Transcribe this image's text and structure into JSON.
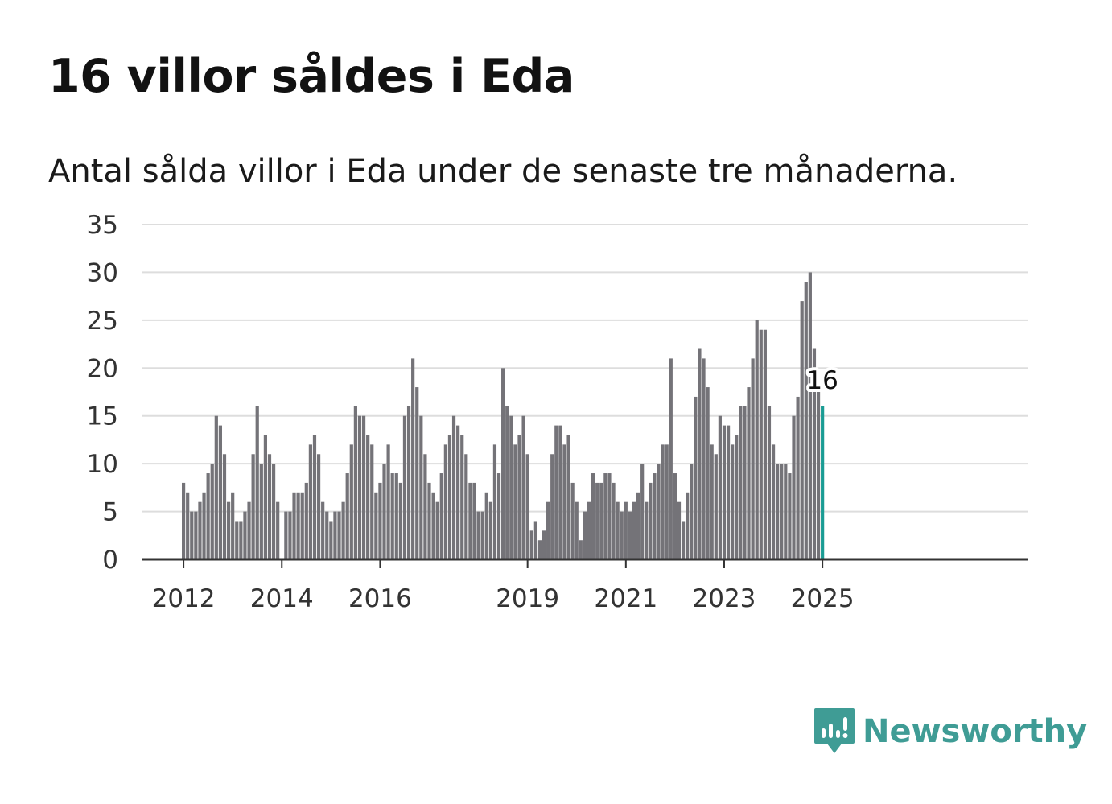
{
  "header": {
    "title": "16 villor såldes i Eda",
    "subtitle": "Antal sålda villor i Eda under de senaste tre månaderna."
  },
  "brand": {
    "name": "Newsworthy",
    "color": "#3f9c95"
  },
  "colors": {
    "bar": "#747378",
    "highlight": "#1a9c94",
    "grid": "#dddddd",
    "axis": "#333333"
  },
  "chart_data": {
    "type": "bar",
    "x_start": "2012-01",
    "frequency": "monthly",
    "values": [
      8,
      7,
      5,
      5,
      6,
      7,
      9,
      10,
      15,
      14,
      11,
      6,
      7,
      4,
      4,
      5,
      6,
      11,
      16,
      10,
      13,
      11,
      10,
      6,
      0,
      5,
      5,
      7,
      7,
      7,
      8,
      12,
      13,
      11,
      6,
      5,
      4,
      5,
      5,
      6,
      9,
      12,
      16,
      15,
      15,
      13,
      12,
      7,
      8,
      10,
      12,
      9,
      9,
      8,
      15,
      16,
      21,
      18,
      15,
      11,
      8,
      7,
      6,
      9,
      12,
      13,
      15,
      14,
      13,
      11,
      8,
      8,
      5,
      5,
      7,
      6,
      12,
      9,
      20,
      16,
      15,
      12,
      13,
      15,
      11,
      3,
      4,
      2,
      3,
      6,
      11,
      14,
      14,
      12,
      13,
      8,
      6,
      2,
      5,
      6,
      9,
      8,
      8,
      9,
      9,
      8,
      6,
      5,
      6,
      5,
      6,
      7,
      10,
      6,
      8,
      9,
      10,
      12,
      12,
      21,
      9,
      6,
      4,
      7,
      10,
      17,
      22,
      21,
      18,
      12,
      11,
      15,
      14,
      14,
      12,
      13,
      16,
      16,
      18,
      21,
      25,
      24,
      24,
      16,
      12,
      10,
      10,
      10,
      9,
      15,
      17,
      27,
      29,
      30,
      22,
      18,
      16
    ],
    "highlight_last": true,
    "highlight_label": "16",
    "x_tick_labels": [
      "2012",
      "2014",
      "2016",
      "2019",
      "2021",
      "2023",
      "2025"
    ],
    "y_ticks": [
      0,
      5,
      10,
      15,
      20,
      25,
      30,
      35
    ],
    "ylim": [
      0,
      35
    ],
    "grid": true
  }
}
